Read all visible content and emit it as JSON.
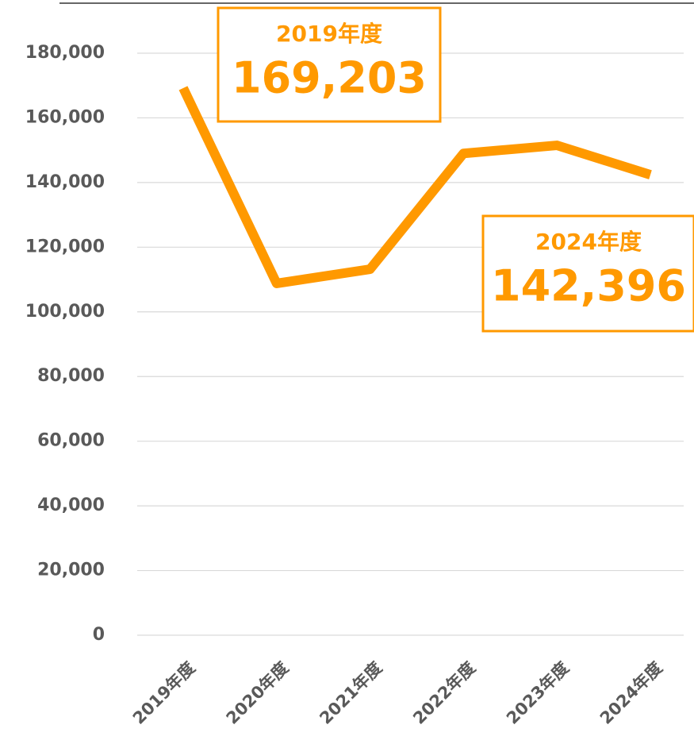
{
  "chart_data": {
    "type": "line",
    "categories": [
      "2019年度",
      "2020年度",
      "2021年度",
      "2022年度",
      "2023年度",
      "2024年度"
    ],
    "series": [
      {
        "name": null,
        "color": "#ff9900",
        "values": [
          169203,
          108800,
          113200,
          149000,
          151500,
          142396
        ],
        "value_labels": [
          "169,203",
          null,
          null,
          null,
          null,
          "142,396"
        ]
      }
    ],
    "ylim": [
      0,
      180000
    ],
    "yticks": [
      0,
      {
        "value": 20000,
        "label": "20,000"
      },
      {
        "value": 40000,
        "label": "40,000"
      },
      {
        "value": 60000,
        "label": "60,000"
      },
      {
        "value": 80000,
        "label": "80,000"
      },
      {
        "value": 100000,
        "label": "100,000"
      },
      {
        "value": 120000,
        "label": "120,000"
      },
      {
        "value": 140000,
        "label": "140,000"
      },
      {
        "value": 160000,
        "label": "160,000"
      },
      {
        "value": 180000,
        "label": "180,000"
      }
    ],
    "grid": true
  }
}
